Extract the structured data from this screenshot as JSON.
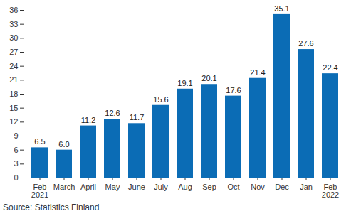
{
  "chart_data": {
    "type": "bar",
    "caption": "Source: Statistics Finland",
    "categories": [
      "Feb\n2021",
      "March",
      "April",
      "May",
      "June",
      "July",
      "Aug",
      "Sep",
      "Oct",
      "Nov",
      "Dec",
      "Jan",
      "Feb\n2022"
    ],
    "values": [
      6.5,
      6.0,
      11.2,
      12.6,
      11.7,
      15.6,
      19.1,
      20.1,
      17.6,
      21.4,
      35.1,
      27.6,
      22.4
    ],
    "value_labels": [
      "6.5",
      "6.0",
      "11.2",
      "12.6",
      "11.7",
      "15.6",
      "19.1",
      "20.1",
      "17.6",
      "21.4",
      "35.1",
      "27.6",
      "22.4"
    ],
    "color": "#0b6cb5",
    "ylim": [
      0,
      36
    ],
    "yticks": [
      0,
      3,
      6,
      9,
      12,
      15,
      18,
      21,
      24,
      27,
      30,
      33,
      36
    ],
    "grid": false,
    "data_labels": true
  }
}
